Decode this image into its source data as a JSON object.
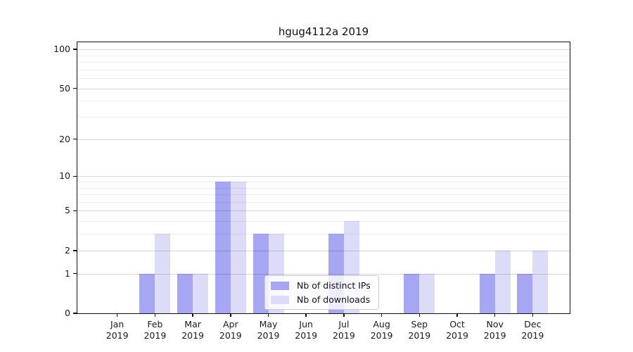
{
  "chart_data": {
    "type": "bar",
    "title": "hgug4112a 2019",
    "categories": [
      "Jan 2019",
      "Feb 2019",
      "Mar 2019",
      "Apr 2019",
      "May 2019",
      "Jun 2019",
      "Jul 2019",
      "Aug 2019",
      "Sep 2019",
      "Oct 2019",
      "Nov 2019",
      "Dec 2019"
    ],
    "series": [
      {
        "name": "Nb of distinct IPs",
        "color": "#a6a6f3",
        "values": [
          0,
          1,
          1,
          9,
          3,
          0,
          3,
          0,
          1,
          0,
          1,
          1
        ]
      },
      {
        "name": "Nb of downloads",
        "color": "#dcdcf8",
        "values": [
          0,
          3,
          1,
          9,
          3,
          0,
          4,
          0,
          1,
          0,
          2,
          2
        ]
      }
    ],
    "xlabel": "",
    "ylabel": "",
    "yscale": "log10(1+y)",
    "yticks": [
      0,
      1,
      2,
      5,
      10,
      20,
      50,
      100
    ],
    "minor_gridlines": [
      3,
      4,
      6,
      7,
      8,
      9,
      30,
      40,
      60,
      70,
      80,
      90
    ],
    "ylim": [
      0,
      113
    ],
    "grid": "on",
    "legend_position": "lower-center-inside"
  },
  "colors": {
    "axis": "#111111",
    "major_grid": "rgba(0,0,0,0.16)",
    "minor_grid": "rgba(0,0,0,0.07)",
    "legend_border": "#cccccc",
    "legend_background": "rgba(255,255,255,0.8)"
  }
}
